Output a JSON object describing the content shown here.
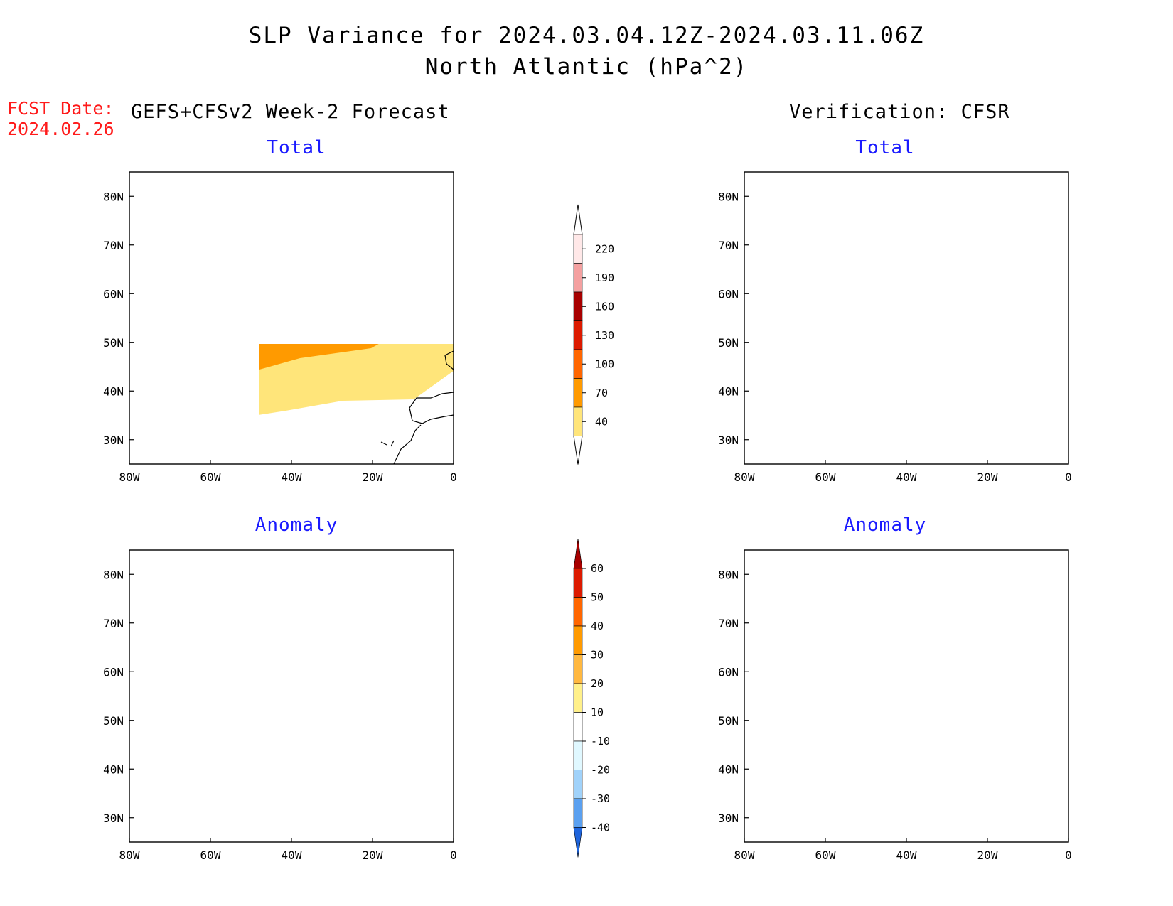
{
  "title": {
    "line1": "SLP Variance for 2024.03.04.12Z-2024.03.11.06Z",
    "line2": "North Atlantic (hPa^2)"
  },
  "forecast_date": {
    "label": "FCST Date:",
    "value": "2024.02.26"
  },
  "left_heading": "GEFS+CFSv2 Week-2 Forecast",
  "right_heading": "Verification: CFSR",
  "panels": {
    "top_left": {
      "title": "Total"
    },
    "top_right": {
      "title": "Total"
    },
    "bottom_left": {
      "title": "Anomaly"
    },
    "bottom_right": {
      "title": "Anomaly"
    }
  },
  "axes": {
    "lon_labels": [
      "80W",
      "60W",
      "40W",
      "20W",
      "0"
    ],
    "lat_labels": [
      "80N",
      "70N",
      "60N",
      "50N",
      "40N",
      "30N"
    ]
  },
  "colorbars": {
    "total": {
      "labels": [
        "220",
        "190",
        "160",
        "130",
        "100",
        "70",
        "40"
      ],
      "colors": [
        "#ffe8e8",
        "#f4a0a0",
        "#a80000",
        "#dc1a00",
        "#ff6600",
        "#ff9a00",
        "#ffe57a"
      ]
    },
    "anomaly": {
      "labels": [
        "60",
        "50",
        "40",
        "30",
        "20",
        "10",
        "-10",
        "-20",
        "-30",
        "-40"
      ],
      "colors": [
        "#a80000",
        "#dc1a00",
        "#ff6600",
        "#ff9a00",
        "#ffb840",
        "#fff08a",
        "#ffffff",
        "#e0f8ff",
        "#a0d2fa",
        "#5aa0f0",
        "#1e64dc"
      ]
    }
  }
}
